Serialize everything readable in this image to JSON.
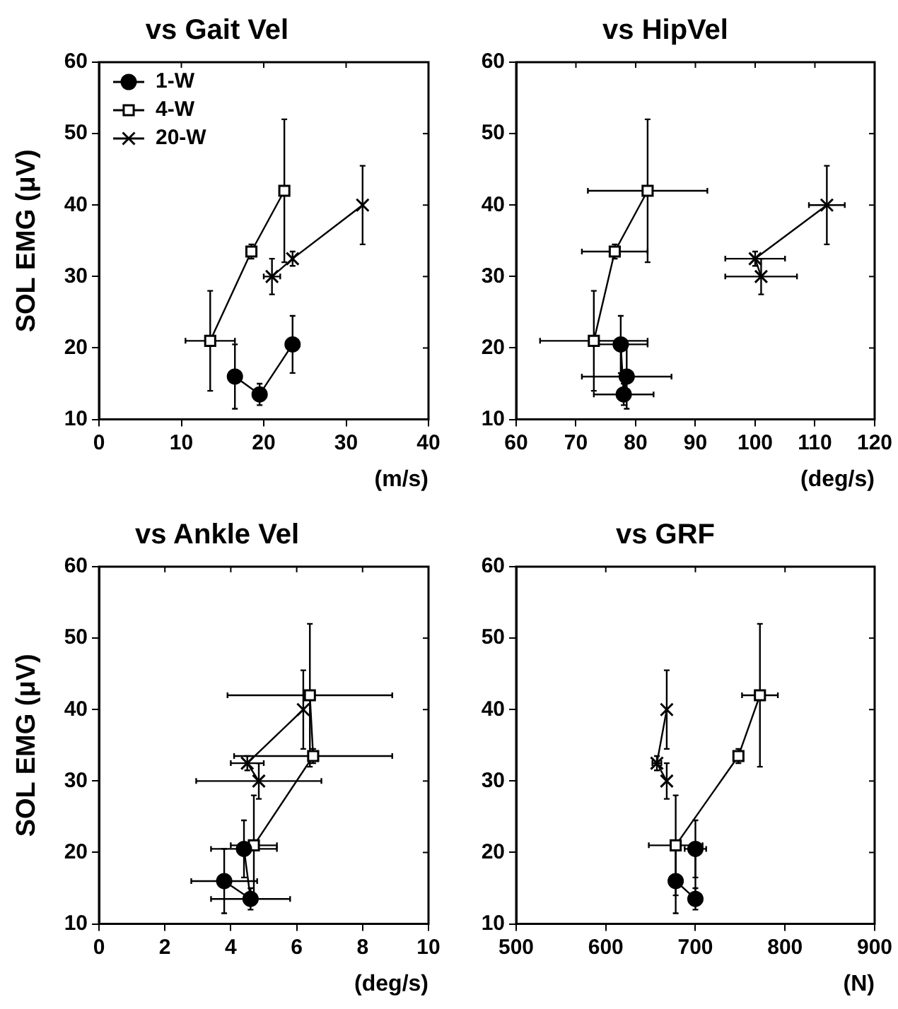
{
  "chart_data": [
    {
      "type": "line",
      "title": "vs Gait Vel",
      "xlabel": "(m/s)",
      "ylabel": "SOL EMG (μV)",
      "xlim": [
        0,
        40
      ],
      "xticks": [
        0,
        10,
        20,
        30,
        40
      ],
      "ylim": [
        10,
        60
      ],
      "yticks": [
        10,
        20,
        30,
        40,
        50,
        60
      ],
      "grid": false,
      "legend": "top left",
      "line_style": "solid",
      "series": [
        {
          "name": "1-W",
          "color": "#000000",
          "marker": "circle",
          "x": [
            16.5,
            19.5,
            23.5
          ],
          "values": [
            16,
            13.5,
            20.5
          ],
          "errors": [
            4.5,
            1.5,
            4
          ],
          "xerrors": [
            null,
            null,
            null
          ]
        },
        {
          "name": "4-W",
          "color": "#000000",
          "marker": "square",
          "x": [
            13.5,
            18.5,
            22.5
          ],
          "values": [
            21,
            33.5,
            42
          ],
          "errors": [
            7,
            1,
            10
          ],
          "xerrors": [
            3,
            null,
            null
          ]
        },
        {
          "name": "20-W",
          "color": "#000000",
          "marker": "cross",
          "x": [
            21,
            23.5,
            32
          ],
          "values": [
            30,
            32.5,
            40
          ],
          "errors": [
            2.5,
            1,
            5.5
          ],
          "xerrors": [
            1,
            null,
            null
          ]
        }
      ]
    },
    {
      "type": "line",
      "title": "vs HipVel",
      "xlabel": "(deg/s)",
      "xlim": [
        60,
        120
      ],
      "xticks": [
        60,
        70,
        80,
        90,
        100,
        110,
        120
      ],
      "ylim": [
        10,
        60
      ],
      "yticks": [
        10,
        20,
        30,
        40,
        50,
        60
      ],
      "grid": false,
      "line_style": "solid",
      "series": [
        {
          "color": "#000000",
          "marker": "circle",
          "x": [
            78.5,
            78,
            77.5
          ],
          "values": [
            16,
            13.5,
            20.5
          ],
          "errors": [
            4.5,
            1.5,
            4
          ],
          "xerrors": [
            7.5,
            5,
            4.5
          ]
        },
        {
          "color": "#000000",
          "marker": "square",
          "x": [
            73,
            76.5,
            82
          ],
          "values": [
            21,
            33.5,
            42
          ],
          "errors": [
            7,
            1,
            10
          ],
          "xerrors": [
            9,
            5.5,
            10
          ]
        },
        {
          "color": "#000000",
          "marker": "cross",
          "x": [
            101,
            100,
            112
          ],
          "values": [
            30,
            32.5,
            40
          ],
          "errors": [
            2.5,
            1,
            5.5
          ],
          "xerrors": [
            6,
            5,
            3
          ]
        }
      ]
    },
    {
      "type": "line",
      "title": "vs Ankle Vel",
      "xlabel": "(deg/s)",
      "ylabel": "SOL EMG (μV)",
      "xlim": [
        0,
        10
      ],
      "xticks": [
        0,
        2,
        4,
        6,
        8,
        10
      ],
      "ylim": [
        10,
        60
      ],
      "yticks": [
        10,
        20,
        30,
        40,
        50,
        60
      ],
      "grid": false,
      "line_style": "solid",
      "series": [
        {
          "color": "#000000",
          "marker": "circle",
          "x": [
            3.8,
            4.6,
            4.4
          ],
          "values": [
            16,
            13.5,
            20.5
          ],
          "errors": [
            4.5,
            1.5,
            4
          ],
          "xerrors": [
            1,
            1.2,
            1
          ]
        },
        {
          "color": "#000000",
          "marker": "square",
          "x": [
            4.7,
            6.5,
            6.4
          ],
          "values": [
            21,
            33.5,
            42
          ],
          "errors": [
            7,
            1,
            10
          ],
          "xerrors": [
            0.7,
            2.4,
            2.5
          ]
        },
        {
          "color": "#000000",
          "marker": "cross",
          "x": [
            4.85,
            4.5,
            6.2
          ],
          "values": [
            30,
            32.5,
            40
          ],
          "errors": [
            2.5,
            1,
            5.5
          ],
          "xerrors": [
            1.9,
            0.5,
            null
          ]
        }
      ]
    },
    {
      "type": "line",
      "title": "vs GRF",
      "xlabel": "(N)",
      "xlim": [
        500,
        900
      ],
      "xticks": [
        500,
        600,
        700,
        800,
        900
      ],
      "ylim": [
        10,
        60
      ],
      "yticks": [
        10,
        20,
        30,
        40,
        50,
        60
      ],
      "grid": false,
      "line_style": "solid",
      "series": [
        {
          "color": "#000000",
          "marker": "circle",
          "x": [
            678,
            700,
            700
          ],
          "values": [
            16,
            13.5,
            20.5
          ],
          "errors": [
            4.5,
            1.5,
            4
          ],
          "xerrors": [
            null,
            null,
            12
          ]
        },
        {
          "color": "#000000",
          "marker": "square",
          "x": [
            678,
            748,
            772
          ],
          "values": [
            21,
            33.5,
            42
          ],
          "errors": [
            7,
            1,
            10
          ],
          "xerrors": [
            30,
            null,
            20
          ]
        },
        {
          "color": "#000000",
          "marker": "cross",
          "x": [
            668,
            657,
            668
          ],
          "values": [
            30,
            32.5,
            40
          ],
          "errors": [
            2.5,
            1,
            5.5
          ],
          "xerrors": [
            null,
            5,
            null
          ]
        }
      ]
    }
  ]
}
